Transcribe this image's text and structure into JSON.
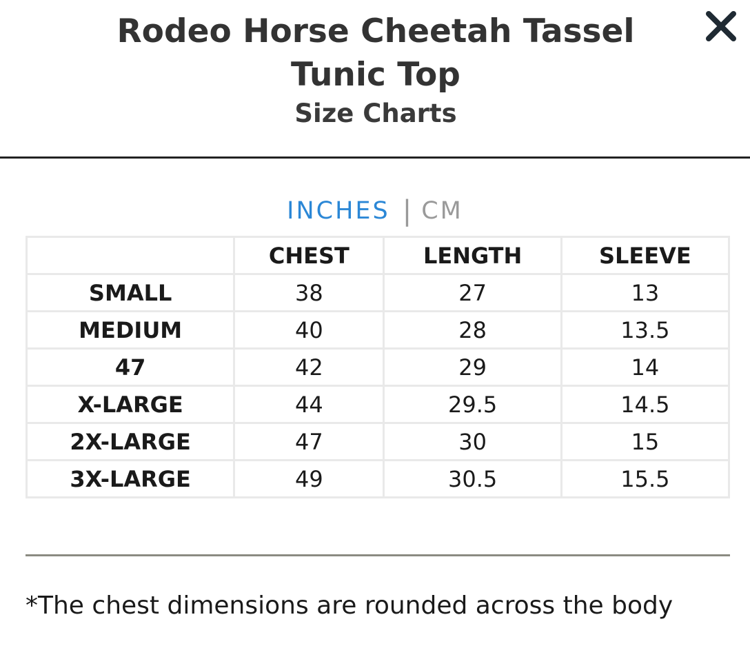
{
  "header": {
    "title": "Rodeo Horse Cheetah Tassel Tunic Top",
    "subtitle": "Size Charts",
    "close_icon": "close-x"
  },
  "units": {
    "inches_label": "INCHES",
    "separator": "|",
    "cm_label": "CM",
    "active": "INCHES",
    "active_color": "#2b87d6",
    "inactive_color": "#9a9a9a"
  },
  "table": {
    "columns": [
      "",
      "CHEST",
      "LENGTH",
      "SLEEVE"
    ],
    "rows": [
      {
        "size": "SMALL",
        "chest": "38",
        "length": "27",
        "sleeve": "13"
      },
      {
        "size": "MEDIUM",
        "chest": "40",
        "length": "28",
        "sleeve": "13.5"
      },
      {
        "size": "47",
        "chest": "42",
        "length": "29",
        "sleeve": "14"
      },
      {
        "size": "X-LARGE",
        "chest": "44",
        "length": "29.5",
        "sleeve": "14.5"
      },
      {
        "size": "2X-LARGE",
        "chest": "47",
        "length": "30",
        "sleeve": "15"
      },
      {
        "size": "3X-LARGE",
        "chest": "49",
        "length": "30.5",
        "sleeve": "15.5"
      }
    ]
  },
  "footnote": "*The chest dimensions are rounded across the body"
}
